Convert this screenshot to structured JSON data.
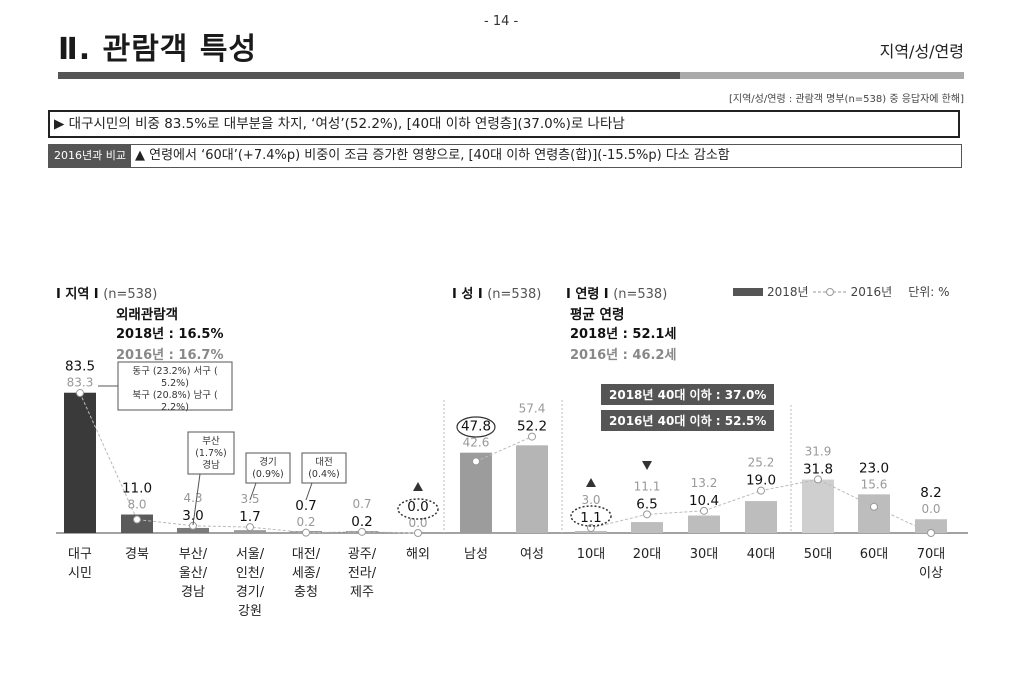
{
  "page": {
    "page_number": "- 14 -",
    "title": "Ⅱ. 관람객 특성",
    "section_tag": "지역/성/연령",
    "source_note": "[지역/성/연령 : 관람객 명부(n=538) 중 응답자에 한해]",
    "summary": "▶ 대구시민의 비중 83.5%로 대부분을 차지, ‘여성’(52.2%), [40대 이하 연령층](37.0%)로 나타남",
    "compare_badge": "2016년과 비교",
    "compare_text": "▲ 연령에서 ‘60대’(+7.4%p) 비중이 조금 증가한 영향으로, [40대 이하 연령층(합)](-15.5%p) 다소 감소함"
  },
  "panels": {
    "region": {
      "label": "I 지역 I",
      "n": "(n=538)",
      "note_title": "외래관람객",
      "note_2018": "2018년 : 16.5%",
      "note_2016": "2016년 : 16.7%"
    },
    "gender": {
      "label": "I 성 I",
      "n": "(n=538)"
    },
    "age": {
      "label": "I 연령 I",
      "n": "(n=538)",
      "note_title": "평균 연령",
      "note_2018": "2018년 : 52.1세",
      "note_2016": "2016년 : 46.2세",
      "box_2018": "2018년 40대 이하 : 37.0%",
      "box_2016": "2016년 40대 이하 : 52.5%"
    }
  },
  "legend": {
    "series_2018": "2018년",
    "series_2016": "2016년",
    "unit": "단위: %"
  },
  "callouts": {
    "daegu": {
      "lines": [
        "동구 (23.2%) 서구 (",
        "5.2%)",
        "북구 (20.8%) 남구 (",
        "2.2%)"
      ]
    },
    "busan": {
      "lines": [
        "부산",
        "(1.7%)",
        "경남"
      ]
    },
    "gyeonggi": {
      "lines": [
        "경기",
        "(0.9%)"
      ]
    },
    "daejeon": {
      "lines": [
        "대전",
        "(0.4%)"
      ]
    }
  },
  "colors": {
    "bar_2018": "#3a3a3a",
    "bar_2016": "#bdbdbd",
    "line_2016": "#bbbbbb",
    "accent_dark": "#555555"
  },
  "chart_data": [
    {
      "type": "bar",
      "title": "지역",
      "categories": [
        "대구\n시민",
        "경북",
        "부산/\n울산/\n경남",
        "서울/\n인천/\n경기/\n강원",
        "대전/\n세종/\n충청",
        "광주/\n전라/\n제주",
        "해외"
      ],
      "series": [
        {
          "name": "2018년",
          "values": [
            83.5,
            11.0,
            3.0,
            1.7,
            0.7,
            0.2,
            0.0
          ]
        },
        {
          "name": "2016년",
          "values": [
            83.3,
            8.0,
            4.3,
            3.5,
            0.2,
            0.7,
            0.0
          ]
        }
      ],
      "ylim": [
        0,
        100
      ]
    },
    {
      "type": "bar",
      "title": "성",
      "categories": [
        "남성",
        "여성"
      ],
      "series": [
        {
          "name": "2018년",
          "values": [
            47.8,
            52.2
          ]
        },
        {
          "name": "2016년",
          "values": [
            42.6,
            57.4
          ]
        }
      ],
      "ylim": [
        0,
        100
      ]
    },
    {
      "type": "bar",
      "title": "연령",
      "categories": [
        "10대",
        "20대",
        "30대",
        "40대",
        "50대",
        "60대",
        "70대\n이상"
      ],
      "series": [
        {
          "name": "2018년",
          "values": [
            1.1,
            6.5,
            10.4,
            19.0,
            31.8,
            23.0,
            8.2
          ]
        },
        {
          "name": "2016년",
          "values": [
            3.0,
            11.1,
            13.2,
            25.2,
            31.9,
            15.6,
            0.0
          ]
        }
      ],
      "ylim": [
        0,
        100
      ]
    }
  ]
}
